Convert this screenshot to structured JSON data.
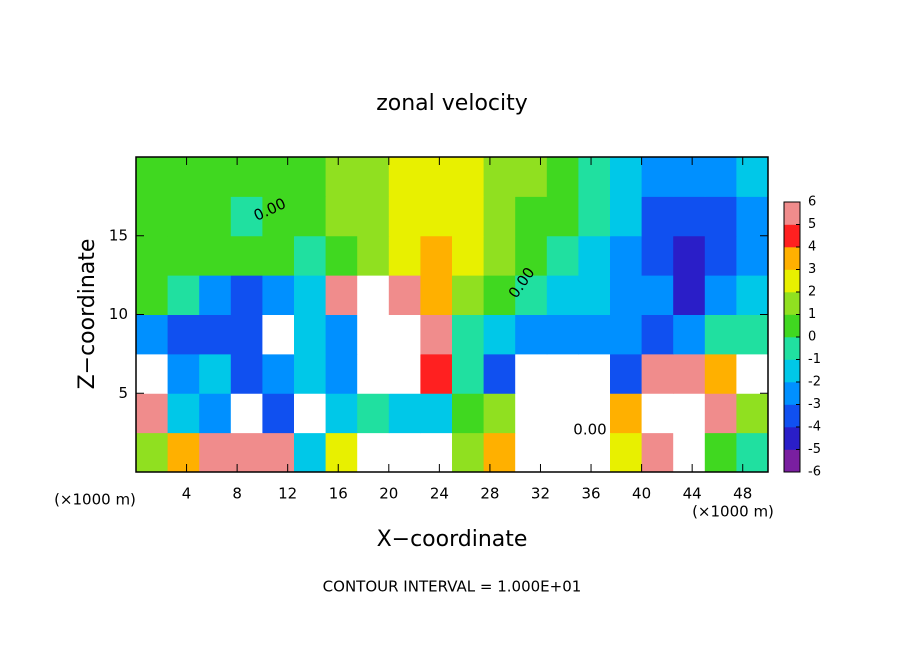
{
  "chart_data": {
    "type": "heatmap",
    "title": "zonal velocity",
    "x_label": "X−coordinate",
    "y_label": "Z−coordinate",
    "x_unit": "(×1000 m)",
    "y_unit": "(×1000 m)",
    "footer": "CONTOUR INTERVAL = 1.000E+01",
    "contour_labels": [
      "0.00",
      "0.00",
      "0.00"
    ],
    "x": [
      1.25,
      3.75,
      6.25,
      8.75,
      11.25,
      13.75,
      16.25,
      18.75,
      21.25,
      23.75,
      26.25,
      28.75,
      31.25,
      33.75,
      36.25,
      38.75,
      41.25,
      43.75,
      46.25,
      48.75
    ],
    "z": [
      1.25,
      3.75,
      6.25,
      8.75,
      11.25,
      13.75,
      16.25,
      18.75
    ],
    "values": [
      [
        1,
        3,
        5,
        6,
        5,
        -2,
        2,
        9,
        8,
        7,
        1,
        3,
        9,
        8,
        8,
        2,
        6,
        9,
        0,
        -1
      ],
      [
        5,
        -2,
        -3,
        7,
        -4,
        8,
        -2,
        -1,
        -2,
        -2,
        0,
        1,
        7,
        9,
        9,
        3,
        9,
        9,
        5,
        1
      ],
      [
        7,
        -3,
        -2,
        -4,
        -3,
        -2,
        -3,
        7,
        8,
        4,
        -1,
        -4,
        9,
        9,
        8,
        -4,
        6,
        5,
        3,
        7
      ],
      [
        -3,
        -4,
        -3.5,
        -4,
        7,
        -2,
        -3,
        7,
        8,
        5,
        -1,
        -2,
        -3,
        -3,
        -2.5,
        -3,
        -4,
        -3,
        -1,
        -1
      ],
      [
        0.5,
        -1,
        -3,
        -3.5,
        -3,
        -2,
        5,
        6.5,
        5,
        3,
        1.5,
        0.5,
        -0.5,
        -1.5,
        -2,
        -2.5,
        -3,
        -4.5,
        -3,
        -2
      ],
      [
        0.3,
        0.2,
        0.3,
        0.5,
        0,
        -0.3,
        0.5,
        1,
        2,
        3,
        2,
        1,
        0.5,
        -0.5,
        -1.5,
        -2.5,
        -3.5,
        -4.5,
        -4,
        -3
      ],
      [
        0.5,
        0.3,
        0,
        -0.3,
        0,
        0.5,
        1,
        1.5,
        2,
        2.5,
        2,
        1.5,
        0.5,
        0,
        -1,
        -2,
        -3.5,
        -4,
        -3.5,
        -2.5
      ],
      [
        0.5,
        0.5,
        0.3,
        0.3,
        0.5,
        0.8,
        1,
        1.5,
        2,
        2.2,
        2,
        1.5,
        1,
        0.5,
        -0.5,
        -1.5,
        -2.5,
        -3,
        -2.5,
        -2
      ]
    ],
    "xlim": [
      0,
      50
    ],
    "ylim": [
      0,
      20
    ],
    "xticks": [
      4,
      8,
      12,
      16,
      20,
      24,
      28,
      32,
      36,
      40,
      44,
      48
    ],
    "yticks": [
      5,
      10,
      15
    ],
    "colorbar_lim": [
      -6,
      6
    ],
    "colorbar_ticks": [
      -6,
      -5,
      -4,
      -3,
      -2,
      -1,
      0,
      1,
      2,
      3,
      4,
      5,
      6
    ],
    "colorscale": [
      "#7a1fa0",
      "#2a1ec8",
      "#1050f0",
      "#0090ff",
      "#00c8e8",
      "#20e0a0",
      "#40d820",
      "#90e020",
      "#e8f000",
      "#ffb000",
      "#ff2020",
      "#f08c8c"
    ],
    "over_color": "#ffffff",
    "under_color": "#ffffff"
  }
}
